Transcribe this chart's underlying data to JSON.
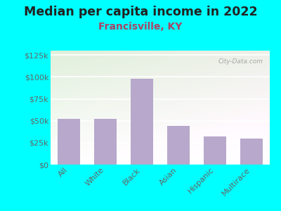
{
  "title": "Median per capita income in 2022",
  "subtitle": "Francisville, KY",
  "categories": [
    "All",
    "White",
    "Black",
    "Asian",
    "Hispanic",
    "Multirace"
  ],
  "values": [
    52000,
    52000,
    98000,
    44000,
    32000,
    30000
  ],
  "bar_color": "#b8a8cc",
  "background_outer": "#00ffff",
  "background_inner_top_left": "#d8edd8",
  "background_inner_bottom_right": "#f0faf0",
  "title_color": "#222222",
  "subtitle_color": "#aa4466",
  "tick_color": "#666666",
  "ylim": [
    0,
    130000
  ],
  "yticks": [
    0,
    25000,
    50000,
    75000,
    100000,
    125000
  ],
  "ytick_labels": [
    "$0",
    "$25k",
    "$50k",
    "$75k",
    "$100k",
    "$125k"
  ],
  "watermark": "City-Data.com",
  "title_fontsize": 12.5,
  "subtitle_fontsize": 10,
  "tick_fontsize": 8
}
